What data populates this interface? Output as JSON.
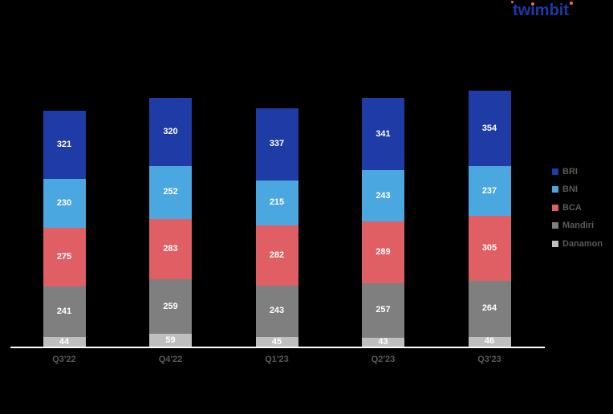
{
  "logo": {
    "text": "twimbit",
    "color": "#1E38A8",
    "accent_color": "#F0696C"
  },
  "chart_data": {
    "type": "bar",
    "stacked": true,
    "title": "",
    "xlabel": "",
    "ylabel": "",
    "categories": [
      "Q3'22",
      "Q4'22",
      "Q1'23",
      "Q2'23",
      "Q3'23"
    ],
    "series": [
      {
        "name": "BRI",
        "color": "#1F3CA6",
        "values": [
          321,
          320,
          337,
          341,
          354
        ]
      },
      {
        "name": "BNI",
        "color": "#4BA7DF",
        "values": [
          230,
          252,
          215,
          243,
          237
        ]
      },
      {
        "name": "BCA",
        "color": "#DF5F64",
        "values": [
          275,
          283,
          282,
          289,
          305
        ]
      },
      {
        "name": "Mandiri",
        "color": "#7F7F7F",
        "values": [
          241,
          259,
          243,
          257,
          264
        ]
      },
      {
        "name": "Danamon",
        "color": "#BFBFBF",
        "values": [
          44,
          59,
          45,
          43,
          46
        ]
      }
    ],
    "stack_order_bottom_to_top": [
      "Danamon",
      "Mandiri",
      "BCA",
      "BNI",
      "BRI"
    ],
    "totals": [
      1111,
      1173,
      1122,
      1173,
      1206
    ],
    "value_labels_shown": true,
    "value_label_color": "#FFFFFF",
    "axis_label_color": "#595959",
    "axis_line_color": "#FFFFFF",
    "legend_position": "right",
    "legend_labels": [
      "BRI",
      "BNI",
      "BCA",
      "Mandiri",
      "Danamon"
    ],
    "background": "#000000",
    "gridlines": false
  }
}
